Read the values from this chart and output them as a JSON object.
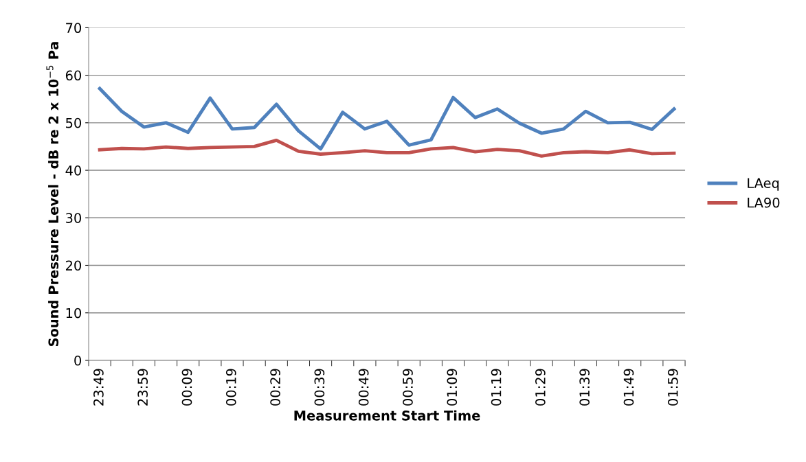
{
  "chart_data": {
    "type": "line",
    "xlabel": "Measurement Start Time",
    "ylabel": "Sound Pressure Level - dB re 2 x 10$^{−5}$ Pa",
    "categories": [
      "23:49",
      null,
      "23:59",
      null,
      "00:09",
      null,
      "00:19",
      null,
      "00:29",
      null,
      "00:39",
      null,
      "00:49",
      null,
      "00:59",
      null,
      "01:09",
      null,
      "01:19",
      null,
      "01:29",
      null,
      "01:39",
      null,
      "01:49",
      null,
      "01:59"
    ],
    "series": [
      {
        "name": "LAeq",
        "color": "#4f81bd",
        "values": [
          57.2,
          52.4,
          49.1,
          50.0,
          48.0,
          55.2,
          48.7,
          49.0,
          53.9,
          48.3,
          44.5,
          52.2,
          48.7,
          50.3,
          45.3,
          46.4,
          55.3,
          51.1,
          52.9,
          49.9,
          47.8,
          48.7,
          52.4,
          50.0,
          50.1,
          48.6,
          52.9
        ]
      },
      {
        "name": "LA90",
        "color": "#c0504d",
        "values": [
          44.3,
          44.6,
          44.5,
          44.9,
          44.6,
          44.8,
          44.9,
          45.0,
          46.3,
          44.0,
          43.4,
          43.7,
          44.1,
          43.7,
          43.7,
          44.5,
          44.8,
          43.9,
          44.4,
          44.1,
          43.0,
          43.7,
          43.9,
          43.7,
          44.3,
          43.5,
          43.6
        ]
      }
    ],
    "ylim": [
      0,
      70
    ],
    "yticks": [
      0,
      10,
      20,
      30,
      40,
      50,
      60,
      70
    ],
    "grid": "y",
    "legend": "right",
    "marker": "none",
    "line_style": "solid"
  }
}
